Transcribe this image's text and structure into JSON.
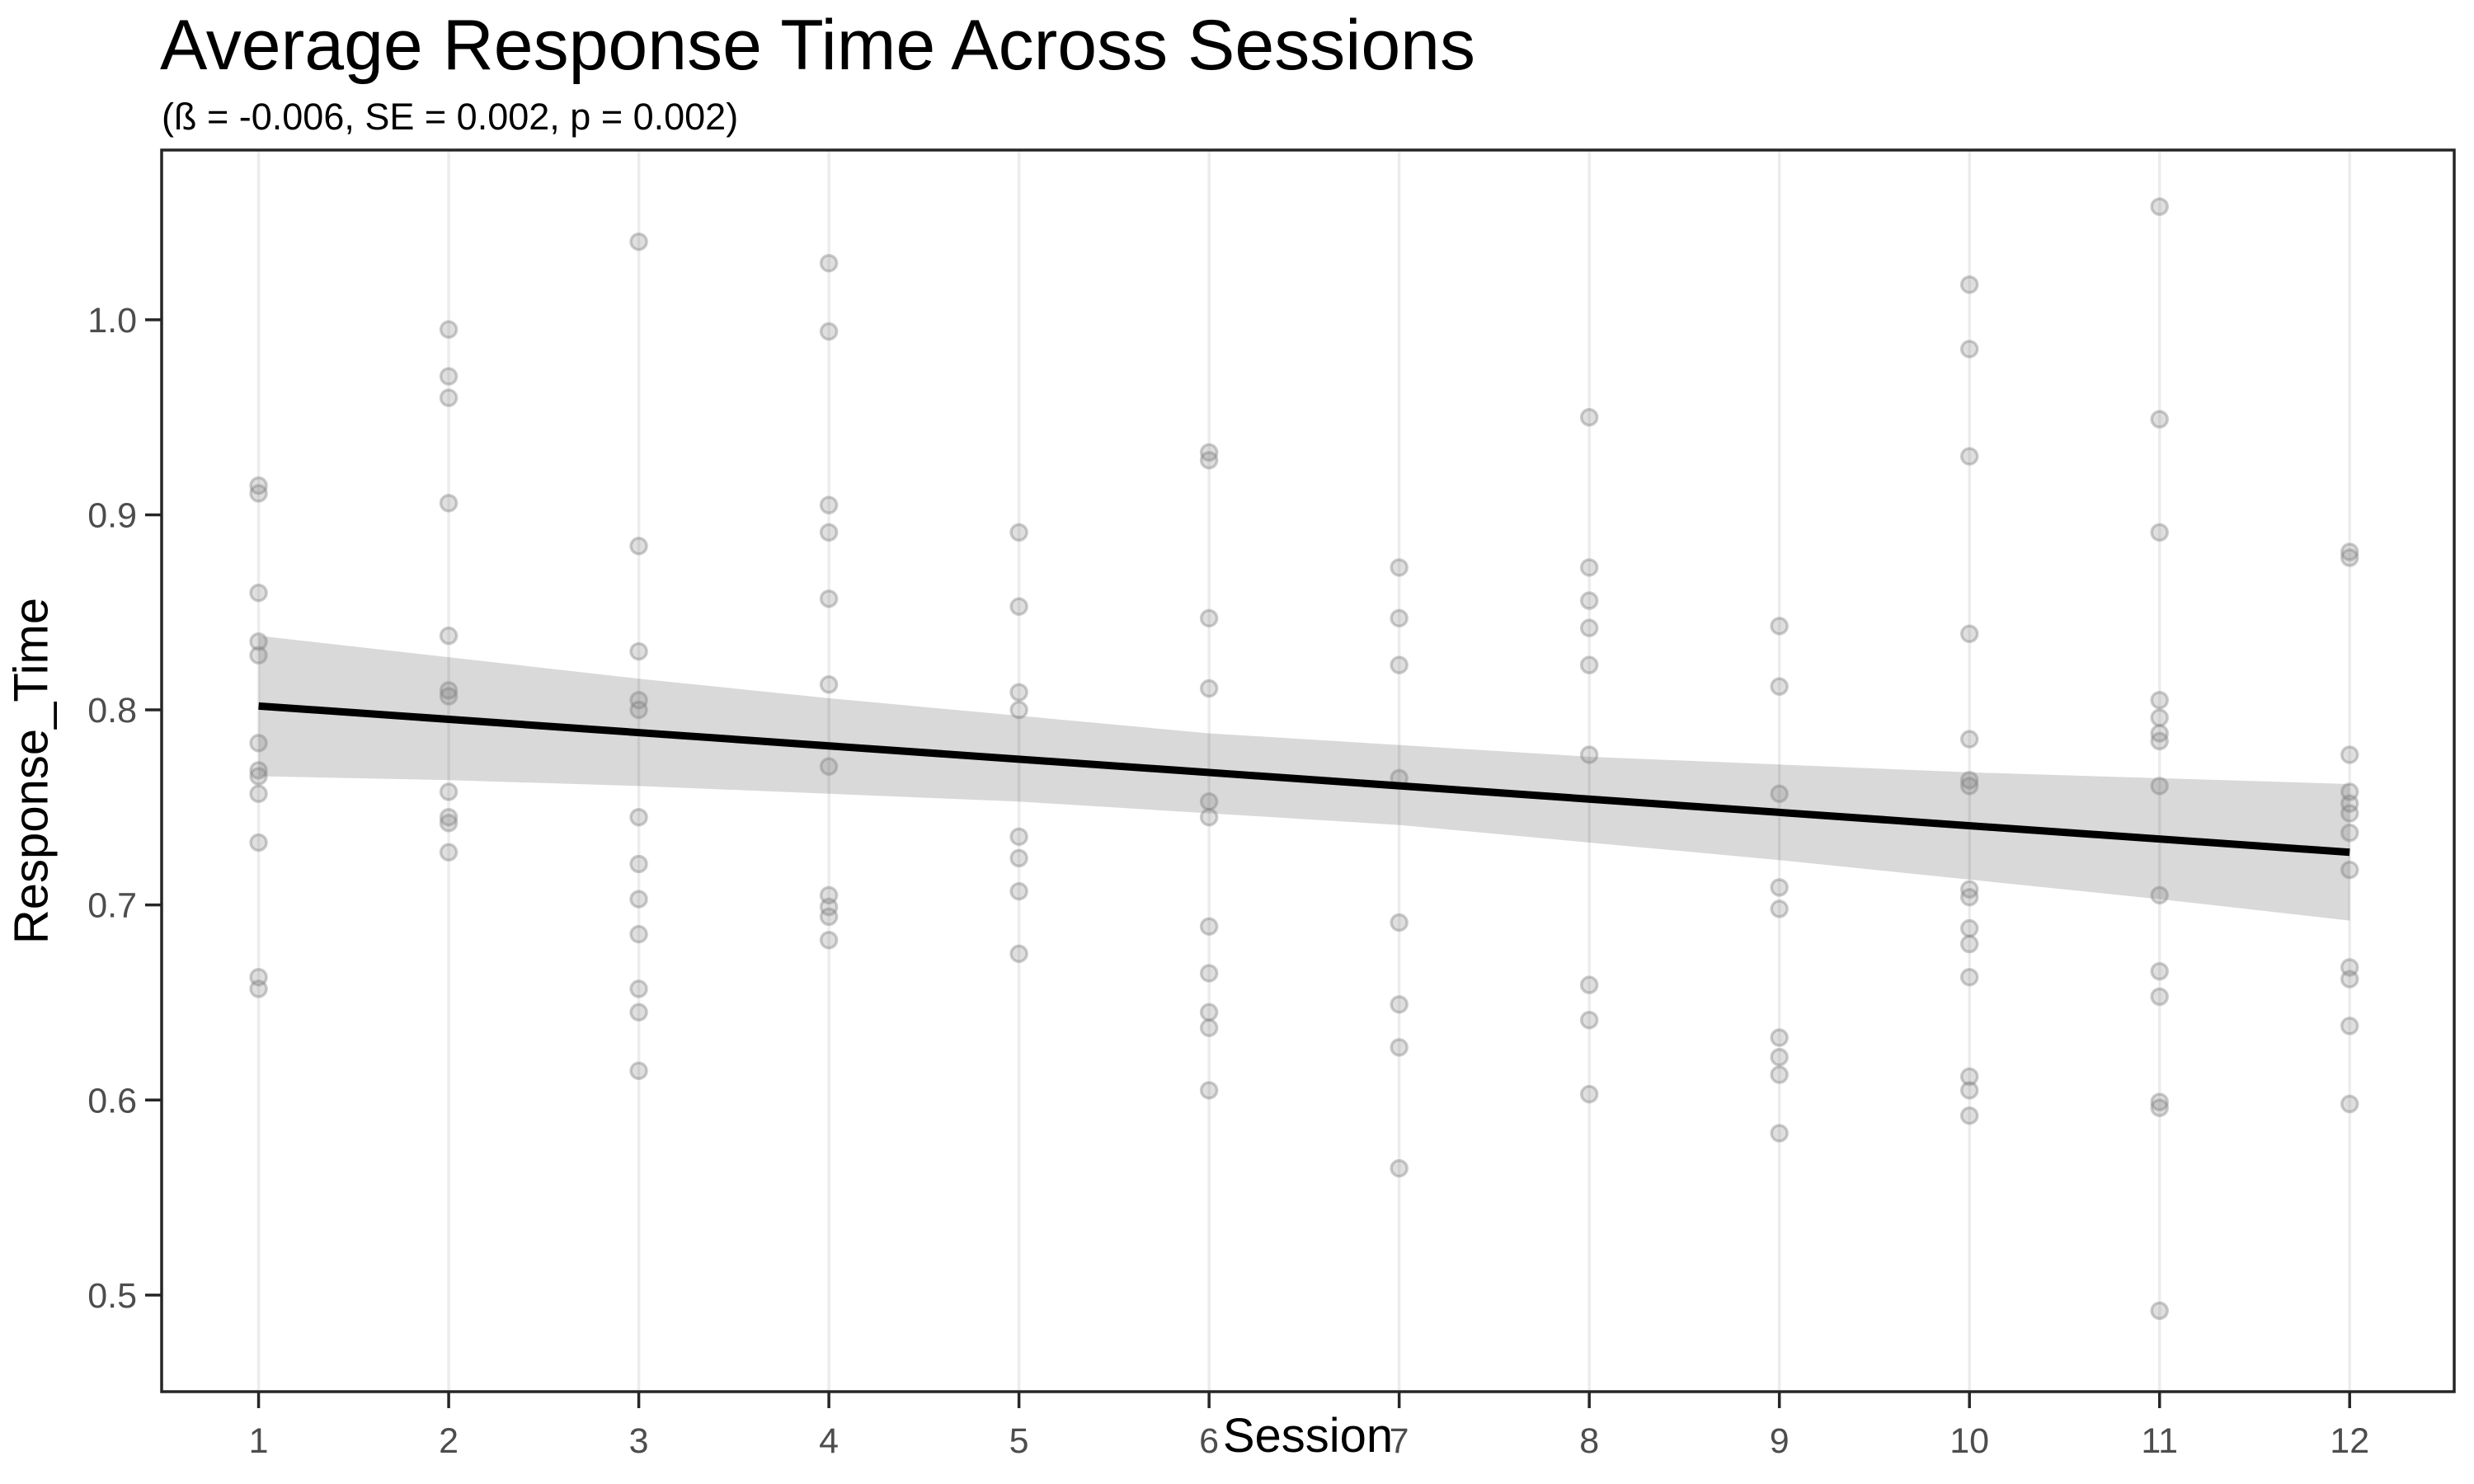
{
  "chart_data": {
    "type": "scatter",
    "title": "Average Response Time Across Sessions",
    "subtitle": "(ß = -0.006, SE = 0.002, p = 0.002)",
    "xlabel": "Session",
    "ylabel": "Response_Time",
    "x_ticks": [
      1,
      2,
      3,
      4,
      5,
      6,
      7,
      8,
      9,
      10,
      11,
      12
    ],
    "y_ticks": [
      {
        "label": "1.0",
        "value": 1.0
      },
      {
        "label": "0.9",
        "value": 0.9
      },
      {
        "label": "0.8",
        "value": 0.8
      },
      {
        "label": "0.7",
        "value": 0.7
      },
      {
        "label": "0.6",
        "value": 0.6
      },
      {
        "label": "0.5",
        "value": 0.5
      }
    ],
    "x_domain": [
      0.49,
      12.55
    ],
    "y_domain": [
      0.4505,
      1.087
    ],
    "grid": "vertical-only",
    "legend": "none",
    "regression": {
      "beta": -0.006,
      "se": 0.002,
      "p": 0.002,
      "line": {
        "x": [
          1,
          12
        ],
        "y": [
          0.802,
          0.727
        ]
      }
    },
    "ribbon": {
      "x": [
        1,
        2,
        3,
        4,
        5,
        6,
        7,
        8,
        9,
        10,
        11,
        12
      ],
      "upper": [
        0.838,
        0.827,
        0.816,
        0.806,
        0.797,
        0.788,
        0.782,
        0.776,
        0.772,
        0.768,
        0.765,
        0.762
      ],
      "lower": [
        0.766,
        0.764,
        0.761,
        0.757,
        0.753,
        0.747,
        0.741,
        0.732,
        0.723,
        0.713,
        0.703,
        0.692
      ]
    },
    "sessions": [
      {
        "session": 1,
        "response_times": [
          0.915,
          0.911,
          0.86,
          0.835,
          0.828,
          0.783,
          0.769,
          0.766,
          0.757,
          0.732,
          0.663,
          0.657
        ]
      },
      {
        "session": 2,
        "response_times": [
          0.995,
          0.971,
          0.96,
          0.906,
          0.838,
          0.81,
          0.807,
          0.758,
          0.745,
          0.742,
          0.727
        ]
      },
      {
        "session": 3,
        "response_times": [
          1.04,
          0.884,
          0.83,
          0.805,
          0.8,
          0.745,
          0.721,
          0.703,
          0.685,
          0.657,
          0.645,
          0.615
        ]
      },
      {
        "session": 4,
        "response_times": [
          1.029,
          0.994,
          0.905,
          0.891,
          0.857,
          0.813,
          0.771,
          0.705,
          0.699,
          0.694,
          0.682
        ]
      },
      {
        "session": 5,
        "response_times": [
          0.891,
          0.853,
          0.809,
          0.8,
          0.735,
          0.724,
          0.707,
          0.675
        ]
      },
      {
        "session": 6,
        "response_times": [
          0.932,
          0.928,
          0.847,
          0.811,
          0.753,
          0.745,
          0.689,
          0.665,
          0.645,
          0.637,
          0.605
        ]
      },
      {
        "session": 7,
        "response_times": [
          0.873,
          0.847,
          0.823,
          0.765,
          0.691,
          0.649,
          0.627,
          0.565
        ]
      },
      {
        "session": 8,
        "response_times": [
          0.95,
          0.873,
          0.856,
          0.842,
          0.823,
          0.777,
          0.659,
          0.641,
          0.603
        ]
      },
      {
        "session": 9,
        "response_times": [
          0.843,
          0.812,
          0.757,
          0.709,
          0.698,
          0.632,
          0.622,
          0.613,
          0.583
        ]
      },
      {
        "session": 10,
        "response_times": [
          1.018,
          0.985,
          0.93,
          0.839,
          0.785,
          0.764,
          0.761,
          0.708,
          0.704,
          0.688,
          0.68,
          0.663,
          0.612,
          0.605,
          0.592
        ]
      },
      {
        "session": 11,
        "response_times": [
          1.058,
          0.949,
          0.891,
          0.805,
          0.796,
          0.788,
          0.784,
          0.761,
          0.705,
          0.666,
          0.653,
          0.599,
          0.596,
          0.492
        ]
      },
      {
        "session": 12,
        "response_times": [
          0.881,
          0.878,
          0.777,
          0.758,
          0.752,
          0.747,
          0.737,
          0.718,
          0.668,
          0.662,
          0.638,
          0.598
        ]
      }
    ],
    "style": {
      "background": "#ffffff",
      "grid_color": "#ececec",
      "ribbon_color": "#000000",
      "ribbon_opacity": 0.15,
      "point_color": "#808080",
      "point_fill_opacity": 0.25,
      "point_stroke_opacity": 0.4,
      "line_color": "#000000",
      "axis_color": "#262626",
      "tick_label_color": "#4d4d4d"
    }
  }
}
